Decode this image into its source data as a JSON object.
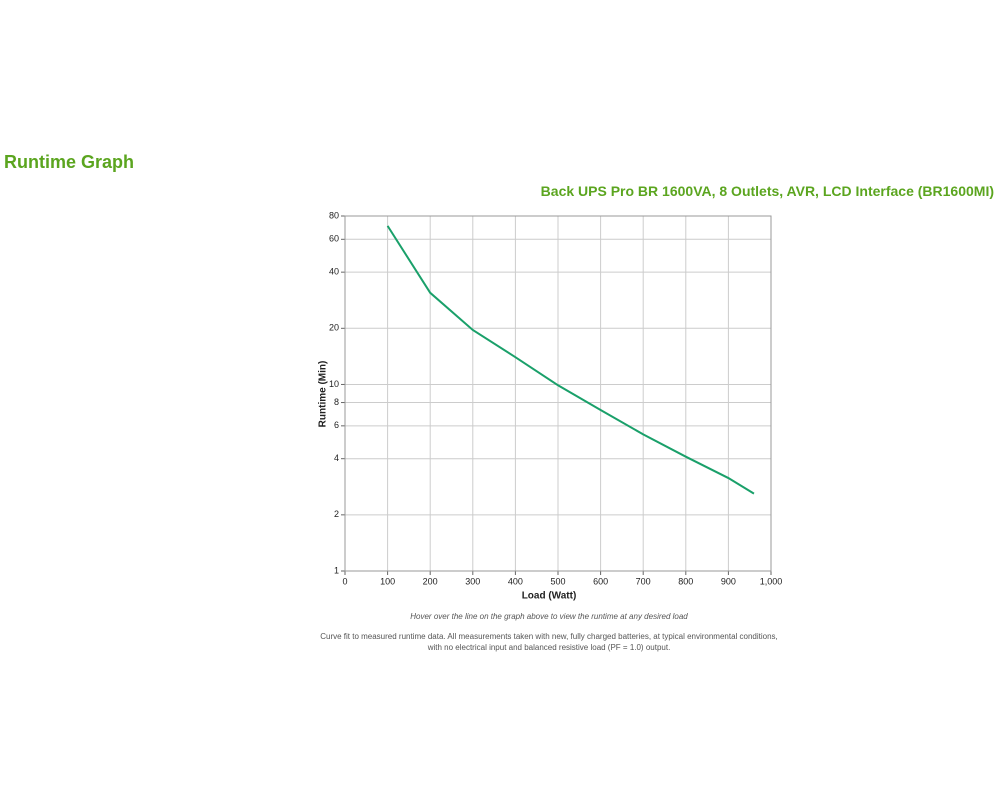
{
  "page": {
    "heading": "Runtime Graph"
  },
  "chart_data": {
    "type": "line",
    "title": "Back UPS Pro BR 1600VA, 8 Outlets, AVR, LCD Interface (BR1600MI)",
    "x_label": "Load (Watt)",
    "y_label": "Runtime (Min)",
    "x": [
      100,
      200,
      300,
      400,
      500,
      600,
      700,
      800,
      900,
      960
    ],
    "values": [
      70.8,
      31,
      19.6,
      14,
      9.9,
      7.3,
      5.4,
      4.1,
      3.15,
      2.6
    ],
    "color": "#1aa06a",
    "xlim": [
      0,
      1000
    ],
    "xticks": [
      0,
      100,
      200,
      300,
      400,
      500,
      600,
      700,
      800,
      900,
      {
        "value": 1000,
        "label": "1,000"
      }
    ],
    "ylim": [
      1,
      80
    ],
    "yticks": [
      1,
      2,
      4,
      6,
      8,
      10,
      20,
      40,
      60,
      80
    ],
    "log_y": true,
    "grid": true,
    "annotations": [
      "Hover over the line on the graph above to view the runtime at any desired load",
      "Curve fit to measured runtime data. All measurements taken with new, fully charged batteries, at typical environmental conditions, with no electrical input and balanced resistive load (PF = 1.0) output."
    ]
  }
}
